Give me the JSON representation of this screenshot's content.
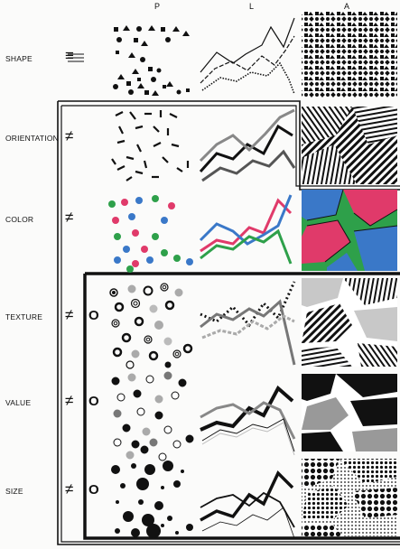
{
  "columns": [
    {
      "id": "p",
      "label": "P"
    },
    {
      "id": "l",
      "label": "L"
    },
    {
      "id": "a",
      "label": "A"
    }
  ],
  "rows": [
    {
      "id": "shape",
      "label": "SHAPE",
      "relation": "≡",
      "ordered": ""
    },
    {
      "id": "orientation",
      "label": "ORIENTATION",
      "relation": "≠",
      "ordered": ""
    },
    {
      "id": "color",
      "label": "COLOR",
      "relation": "≠",
      "ordered": ""
    },
    {
      "id": "texture",
      "label": "TEXTURE",
      "relation": "≠",
      "ordered": "O"
    },
    {
      "id": "value",
      "label": "VALUE",
      "relation": "≠",
      "ordered": "O"
    },
    {
      "id": "size",
      "label": "SIZE",
      "relation": "≠",
      "ordered": "O"
    }
  ],
  "colors": {
    "ink": "#111111",
    "red": "#e03a6a",
    "blue": "#3a78c8",
    "green": "#2ea04a",
    "gray": "#9a9a9a",
    "light": "#c8c8c8"
  }
}
